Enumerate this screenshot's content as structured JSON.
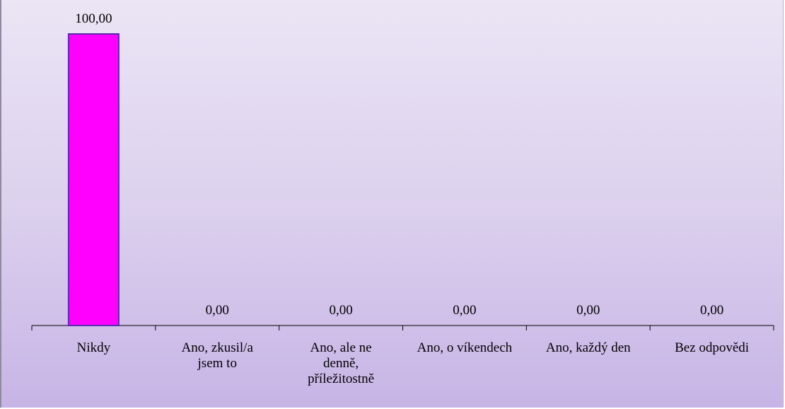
{
  "chart_data": {
    "type": "bar",
    "categories": [
      [
        "Nikdy"
      ],
      [
        "Ano, zkusil/a",
        "jsem to"
      ],
      [
        "Ano, ale ne",
        "denně,",
        "příležitostně"
      ],
      [
        "Ano, o víkendech"
      ],
      [
        "Ano, každý den"
      ],
      [
        "Bez odpovědi"
      ]
    ],
    "values": [
      100.0,
      0.0,
      0.0,
      0.0,
      0.0,
      0.0
    ],
    "value_labels": [
      "100,00",
      "0,00",
      "0,00",
      "0,00",
      "0,00",
      "0,00"
    ],
    "ylim": [
      0,
      100
    ],
    "grid": false,
    "legend": "none",
    "bar_color": "#ff00ff",
    "bar_edge_color": "#5a2bb0",
    "axis_color": "#000000"
  }
}
